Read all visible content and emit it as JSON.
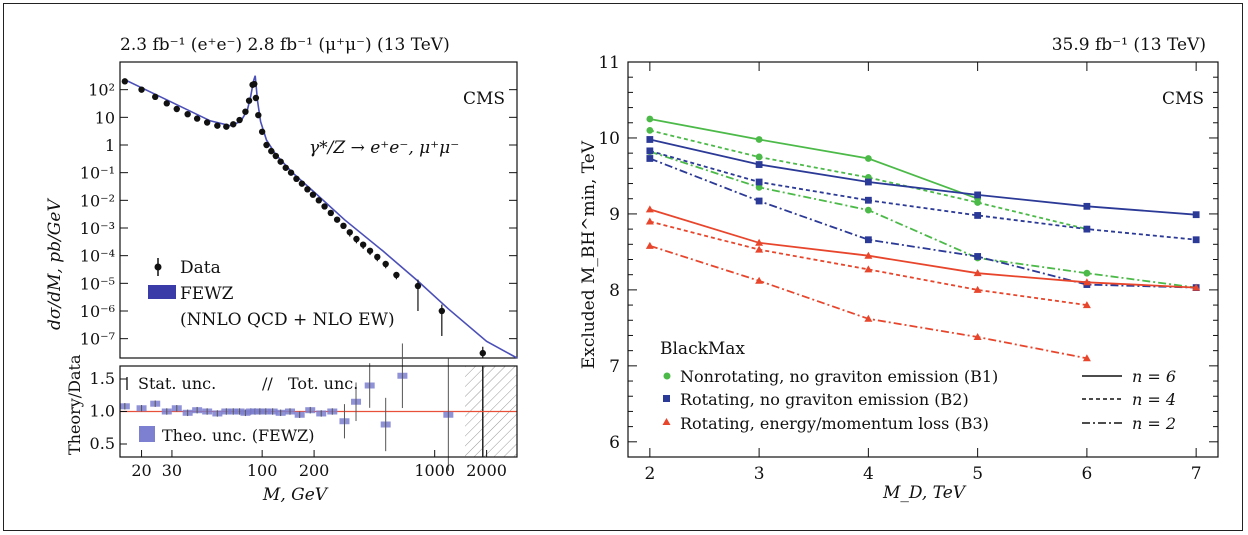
{
  "chart_data": [
    {
      "type": "scatter",
      "panel": "left-top",
      "title_left": "2.3 fb⁻¹ (e⁺e⁻)  2.8 fb⁻¹ (μ⁺μ⁻) (13 TeV)",
      "experiment": "CMS",
      "process": "γ*/Z → e⁺e⁻, μ⁺μ⁻",
      "ylabel": "dσ/dM, pb/GeV",
      "xlabel": "M, GeV",
      "xscale": "log",
      "yscale": "log",
      "xlim": [
        15,
        3000
      ],
      "ylim": [
        2e-08,
        1000
      ],
      "yticks": [
        "10²",
        "10",
        "1",
        "10⁻¹",
        "10⁻²",
        "10⁻³",
        "10⁻⁴",
        "10⁻⁵",
        "10⁻⁶",
        "10⁻⁷"
      ],
      "ytick_values": [
        100,
        10,
        1,
        0.1,
        0.01,
        0.001,
        0.0001,
        1e-05,
        1e-06,
        1e-07
      ],
      "legend": {
        "data": "Data",
        "fewz": "FEWZ",
        "fewz_note": "(NNLO QCD + NLO EW)",
        "placement": "bottom-left"
      },
      "series": [
        {
          "name": "Data",
          "x": [
            16,
            20,
            24,
            28,
            32,
            37,
            42,
            48,
            55,
            62,
            68,
            74,
            80,
            84,
            88,
            90,
            92,
            95,
            100,
            106,
            113,
            120,
            128,
            137,
            147,
            158,
            170,
            183,
            197,
            213,
            230,
            250,
            272,
            296,
            322,
            352,
            385,
            422,
            465,
            520,
            600,
            800,
            1100,
            1900
          ],
          "y": [
            200,
            100,
            55,
            32,
            20,
            13,
            9,
            6.5,
            5,
            4.6,
            5.6,
            8,
            16,
            40,
            150,
            160,
            50,
            12,
            3,
            1,
            0.6,
            0.4,
            0.25,
            0.15,
            0.1,
            0.06,
            0.04,
            0.025,
            0.016,
            0.01,
            0.006,
            0.0035,
            0.002,
            0.0012,
            0.0007,
            0.0004,
            0.00025,
            0.00015,
            9e-05,
            5e-05,
            2e-05,
            8e-06,
            1e-06,
            3e-08
          ]
        },
        {
          "name": "FEWZ",
          "x": [
            16,
            30,
            50,
            65,
            75,
            82,
            86,
            89,
            91.2,
            94,
            98,
            106,
            120,
            150,
            200,
            300,
            500,
            800,
            1200,
            2000,
            3000
          ],
          "y": [
            230,
            35,
            7.5,
            5,
            7,
            18,
            60,
            200,
            320,
            40,
            7,
            1.5,
            0.45,
            0.1,
            0.02,
            0.002,
            0.00015,
            1.2e-05,
            1.2e-06,
            8e-08,
            2e-08
          ]
        }
      ]
    },
    {
      "type": "scatter",
      "panel": "left-bottom",
      "ylabel": "Theory/Data",
      "xlabel": "M, GeV",
      "xscale": "log",
      "xlim": [
        15,
        3000
      ],
      "ylim": [
        0.3,
        1.7
      ],
      "yticks": [
        "0.5",
        "1.0",
        "1.5"
      ],
      "ytick_values": [
        0.5,
        1.0,
        1.5
      ],
      "xticks": [
        "20",
        "30",
        "100",
        "200",
        "1000",
        "2000"
      ],
      "xtick_values": [
        20,
        30,
        100,
        200,
        1000,
        2000
      ],
      "legend": {
        "stat": "Stat. unc.",
        "tot": "Tot. unc.",
        "theo": "Theo. unc. (FEWZ)"
      },
      "ratio": {
        "x": [
          16,
          20,
          24,
          28,
          32,
          37,
          42,
          48,
          55,
          62,
          68,
          74,
          80,
          86,
          91,
          97,
          105,
          115,
          128,
          145,
          165,
          190,
          220,
          255,
          300,
          350,
          420,
          520,
          650,
          1200
        ],
        "y": [
          1.08,
          1.05,
          1.12,
          1.0,
          1.05,
          0.98,
          1.02,
          1.0,
          0.97,
          1.0,
          1.0,
          1.0,
          0.98,
          1.0,
          1.0,
          1.0,
          1.0,
          1.0,
          0.98,
          1.0,
          0.95,
          1.02,
          0.97,
          1.0,
          0.85,
          1.15,
          1.4,
          0.8,
          1.55,
          0.95
        ]
      }
    },
    {
      "type": "line",
      "panel": "right",
      "title": "35.9 fb⁻¹ (13 TeV)",
      "experiment": "CMS",
      "xlabel": "M_D, TeV",
      "ylabel": "Excluded M_BH^min, TeV",
      "xlim": [
        1.8,
        7.2
      ],
      "ylim": [
        5.8,
        11
      ],
      "xticks": [
        2,
        3,
        4,
        5,
        6,
        7
      ],
      "yticks": [
        6,
        7,
        8,
        9,
        10,
        11
      ],
      "legend_title": "BlackMax",
      "legend_entries": [
        "Nonrotating, no graviton emission (B1)",
        "Rotating, no graviton emission (B2)",
        "Rotating, energy/momentum loss (B3)"
      ],
      "style_legend": [
        "n = 6",
        "n = 4",
        "n = 2"
      ],
      "colors": {
        "B1": "#4cba48",
        "B2": "#2c3a97",
        "B3": "#e8462c"
      },
      "series": [
        {
          "name": "B1 n=6",
          "x": [
            2,
            3,
            4,
            5
          ],
          "y": [
            10.25,
            9.98,
            9.73,
            9.2
          ]
        },
        {
          "name": "B1 n=4",
          "x": [
            2,
            3,
            4,
            5,
            6
          ],
          "y": [
            10.1,
            9.75,
            9.48,
            9.15,
            8.8
          ]
        },
        {
          "name": "B1 n=2",
          "x": [
            2,
            3,
            4,
            5,
            6,
            7
          ],
          "y": [
            9.82,
            9.35,
            9.05,
            8.42,
            8.22,
            8.03
          ]
        },
        {
          "name": "B2 n=6",
          "x": [
            2,
            3,
            4,
            5,
            6,
            7
          ],
          "y": [
            9.98,
            9.65,
            9.42,
            9.25,
            9.1,
            8.99
          ]
        },
        {
          "name": "B2 n=4",
          "x": [
            2,
            3,
            4,
            5,
            6,
            7
          ],
          "y": [
            9.83,
            9.42,
            9.18,
            8.98,
            8.8,
            8.66
          ]
        },
        {
          "name": "B2 n=2",
          "x": [
            2,
            3,
            4,
            5,
            6,
            7
          ],
          "y": [
            9.73,
            9.17,
            8.66,
            8.44,
            8.07,
            8.03
          ]
        },
        {
          "name": "B3 n=6",
          "x": [
            2,
            3,
            4,
            5,
            6,
            7
          ],
          "y": [
            9.06,
            8.62,
            8.45,
            8.22,
            8.1,
            8.03
          ]
        },
        {
          "name": "B3 n=4",
          "x": [
            2,
            3,
            4,
            5,
            6
          ],
          "y": [
            8.9,
            8.53,
            8.27,
            8.0,
            7.8
          ]
        },
        {
          "name": "B3 n=2",
          "x": [
            2,
            3,
            4,
            5,
            6
          ],
          "y": [
            8.58,
            8.12,
            7.62,
            7.38,
            7.1
          ]
        }
      ]
    }
  ]
}
